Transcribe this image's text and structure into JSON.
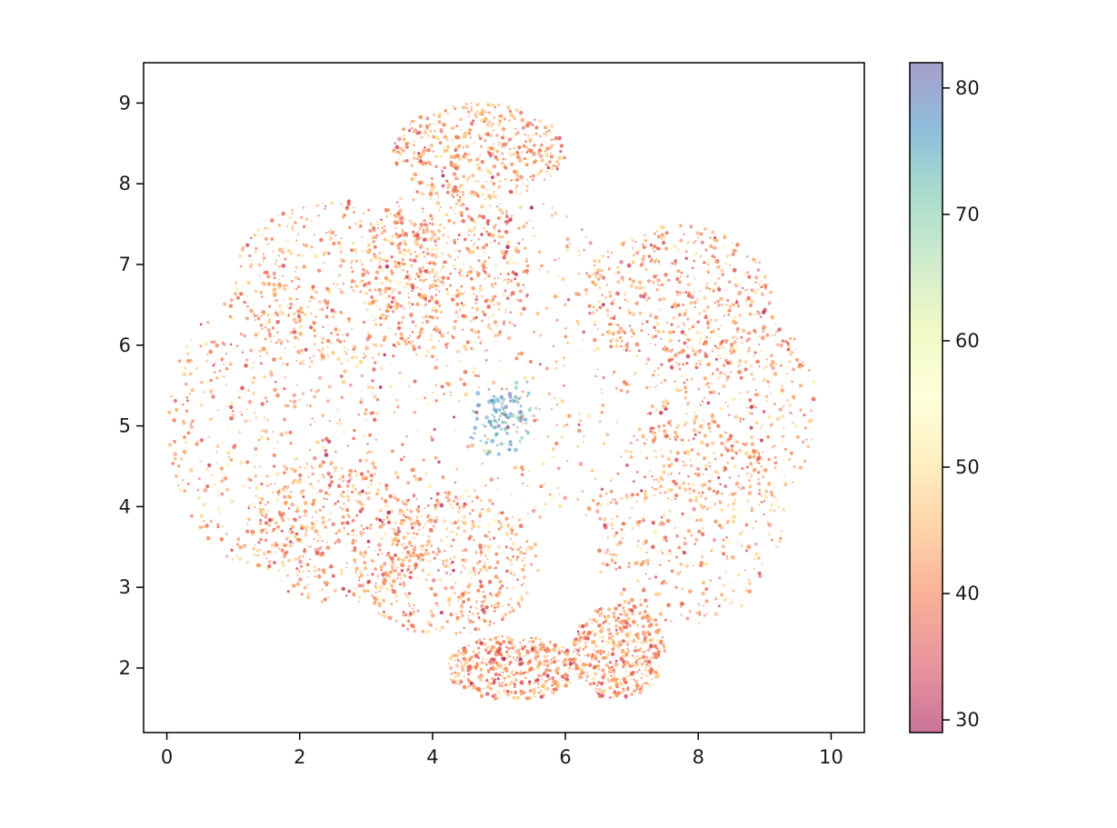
{
  "chart_data": {
    "type": "scatter",
    "title": "",
    "xlabel": "",
    "ylabel": "",
    "xlim": [
      -0.35,
      10.5
    ],
    "ylim": [
      1.2,
      9.5
    ],
    "xticks": [
      "0",
      "2",
      "4",
      "6",
      "8",
      "10"
    ],
    "yticks": [
      "2",
      "3",
      "4",
      "5",
      "6",
      "7",
      "8",
      "9"
    ],
    "grid": false,
    "legend": "none",
    "colormap": "Spectral",
    "point_alpha": 0.5,
    "colorbar": {
      "range": [
        29,
        82
      ],
      "ticks": [
        "30",
        "40",
        "50",
        "60",
        "70",
        "80"
      ],
      "placement": "right",
      "colors": [
        "#9e0142",
        "#d53e4f",
        "#f46d43",
        "#fdae61",
        "#fee08b",
        "#ffffbf",
        "#e6f598",
        "#abdda4",
        "#66c2a5",
        "#3288bd",
        "#5e4fa2"
      ]
    },
    "approx_point_count": 9000,
    "distribution": {
      "description": "dense flower-like cloud of small points, mostly color values 35-50, with a tight cluster of high values (about 75-82) near x=5, y=5",
      "lobes": [
        {
          "cx": 4.7,
          "cy": 8.4,
          "rx": 1.3,
          "ry": 0.6
        },
        {
          "cx": 2.6,
          "cy": 6.8,
          "rx": 1.6,
          "ry": 1.0
        },
        {
          "cx": 1.6,
          "cy": 5.0,
          "rx": 1.6,
          "ry": 1.8
        },
        {
          "cx": 2.6,
          "cy": 3.7,
          "rx": 1.4,
          "ry": 0.9
        },
        {
          "cx": 4.2,
          "cy": 3.3,
          "rx": 1.4,
          "ry": 0.9
        },
        {
          "cx": 5.2,
          "cy": 2.0,
          "rx": 1.0,
          "ry": 0.4
        },
        {
          "cx": 6.8,
          "cy": 2.2,
          "rx": 0.7,
          "ry": 0.6
        },
        {
          "cx": 7.8,
          "cy": 3.8,
          "rx": 1.5,
          "ry": 1.3
        },
        {
          "cx": 8.5,
          "cy": 5.2,
          "rx": 1.3,
          "ry": 1.3
        },
        {
          "cx": 7.7,
          "cy": 6.6,
          "rx": 1.4,
          "ry": 0.9
        },
        {
          "cx": 5.0,
          "cy": 5.8,
          "rx": 2.1,
          "ry": 2.1
        },
        {
          "cx": 4.2,
          "cy": 6.9,
          "rx": 1.3,
          "ry": 1.1
        }
      ],
      "hot_cluster": {
        "cx": 5.1,
        "cy": 5.05,
        "rx": 0.45,
        "ry": 0.45,
        "value_range": [
          70,
          82
        ]
      }
    }
  }
}
